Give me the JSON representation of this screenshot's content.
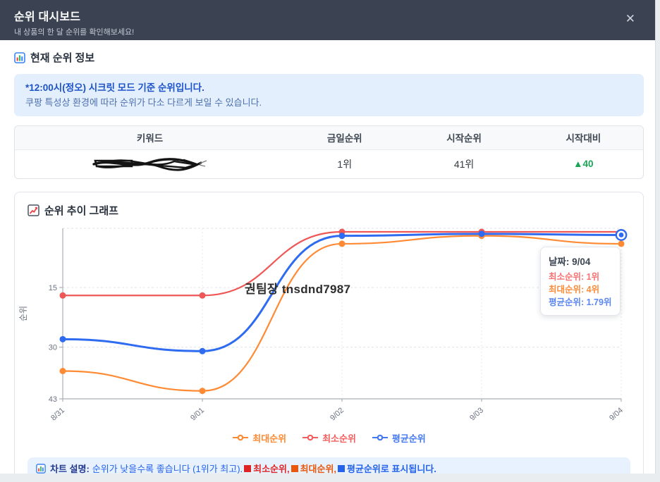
{
  "header": {
    "title": "순위 대시보드",
    "subtitle": "내 상품의 한 달 순위를 확인해보세요!",
    "close_label": "✕"
  },
  "current_rank_section": {
    "title": "현재 순위 정보",
    "notice_line1": "*12:00시(정오) 시크릿 모드 기준 순위입니다.",
    "notice_line2": "쿠팡 특성상 환경에 따라 순위가 다소 다르게 보일 수 있습니다.",
    "table": {
      "headers": [
        "키워드",
        "금일순위",
        "시작순위",
        "시작대비"
      ],
      "row": {
        "keyword_redacted": true,
        "today_rank": "1위",
        "start_rank": "41위",
        "vs_start": "▲40",
        "vs_start_color": "#18a654"
      }
    }
  },
  "chart_section": {
    "title": "순위 추이 그래프",
    "watermark": "권팀장 tnsdnd7987",
    "tooltip": {
      "title": "날짜: 9/04",
      "rows": [
        {
          "text": "최소순위: 1위",
          "color": "#f87171"
        },
        {
          "text": "최대순위: 4위",
          "color": "#fb8c3c"
        },
        {
          "text": "평균순위: 1.79위",
          "color": "#5b86f2"
        }
      ]
    },
    "legend": [
      {
        "label": "최대순위",
        "color": "#ff8a33"
      },
      {
        "label": "최소순위",
        "color": "#f25e5e"
      },
      {
        "label": "평균순위",
        "color": "#4478f2"
      }
    ],
    "footnote": {
      "bold": "차트 설명:",
      "desc": "순위가 낮을수록 좋습니다 (1위가 최고).",
      "items": [
        {
          "square": "#dc2626",
          "text": "최소순위,",
          "color": "#dc2626"
        },
        {
          "square": "#ea580c",
          "text": "최대순위,",
          "color": "#ea580c"
        },
        {
          "square": "#2563eb",
          "text": "평균순위로 표시됩니다.",
          "color": "#2563eb"
        }
      ]
    }
  },
  "chart_data": {
    "type": "line",
    "x": [
      "8/31",
      "9/01",
      "9/02",
      "9/03",
      "9/04"
    ],
    "ylabel": "순위",
    "y_ticks": [
      15,
      30,
      43
    ],
    "y_range": [
      1,
      43
    ],
    "y_inverted": true,
    "grid": true,
    "legend_position": "bottom",
    "series": [
      {
        "name": "최대순위",
        "color": "#ff8a33",
        "values": [
          36,
          41,
          4,
          2,
          4
        ]
      },
      {
        "name": "최소순위",
        "color": "#ef5656",
        "values": [
          17,
          17,
          1,
          1,
          1
        ]
      },
      {
        "name": "평균순위",
        "color": "#2e6bf0",
        "values": [
          28,
          31,
          2,
          1.5,
          1.79
        ]
      }
    ],
    "highlight": {
      "series": "평균순위",
      "x": "9/04",
      "value": 1.79
    }
  }
}
